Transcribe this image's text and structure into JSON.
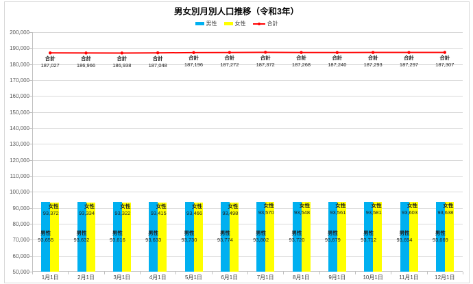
{
  "chart_data": {
    "type": "bar",
    "title": "男女別月別人口推移（令和3年）",
    "categories": [
      "1月1日",
      "2月1日",
      "3月1日",
      "4月1日",
      "5月1日",
      "6月1日",
      "7月1日",
      "8月1日",
      "9月1日",
      "10月1日",
      "11月1日",
      "12月1日"
    ],
    "series": [
      {
        "name": "男性",
        "type": "bar",
        "color": "#00b0f0",
        "values": [
          93655,
          93632,
          93616,
          93633,
          93730,
          93774,
          93802,
          93720,
          93679,
          93712,
          93694,
          93669
        ]
      },
      {
        "name": "女性",
        "type": "bar",
        "color": "#ffff00",
        "values": [
          93372,
          93334,
          93322,
          93415,
          93466,
          93498,
          93570,
          93548,
          93561,
          93581,
          93603,
          93638
        ]
      },
      {
        "name": "合計",
        "type": "line",
        "color": "#ff0000",
        "values": [
          187027,
          186966,
          186938,
          187048,
          187196,
          187272,
          187372,
          187268,
          187240,
          187293,
          187297,
          187307
        ]
      }
    ],
    "ylim": [
      50000,
      200000
    ],
    "ytick_step": 10000,
    "yticks": [
      "50,000",
      "60,000",
      "70,000",
      "80,000",
      "90,000",
      "100,000",
      "110,000",
      "120,000",
      "130,000",
      "140,000",
      "150,000",
      "160,000",
      "170,000",
      "180,000",
      "190,000",
      "200,000"
    ],
    "grid": true,
    "legend_position": "top",
    "data_labels": true
  },
  "legend": {
    "male_label": "男性",
    "female_label": "女性",
    "total_label": "合計"
  },
  "colors": {
    "male": "#00b0f0",
    "female": "#ffff00",
    "total": "#ff0000",
    "gridline": "#d9d9d9",
    "axis": "#bfbfbf",
    "tick_text": "#595959",
    "label_text": "#1f1f1f"
  }
}
